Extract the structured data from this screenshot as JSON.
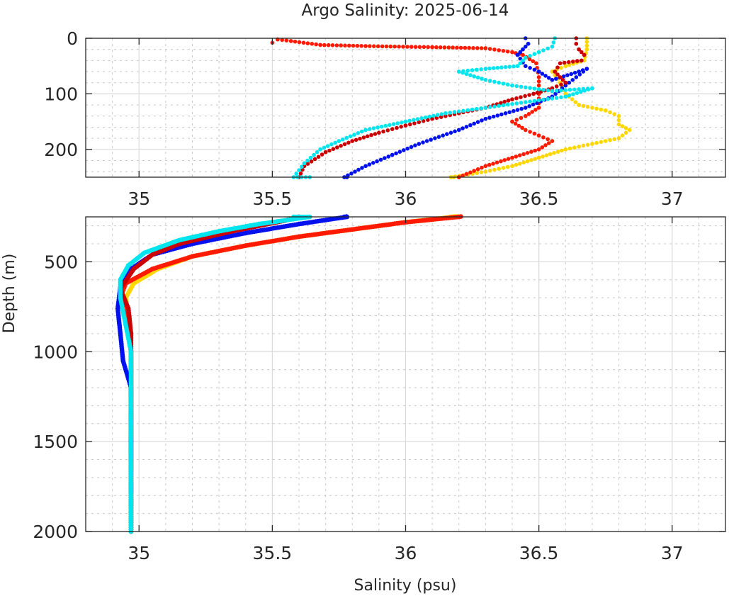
{
  "chart_data": {
    "type": "scatter",
    "title": "Argo Salinity: 2025-06-14",
    "xlabel": "Salinity (psu)",
    "ylabel": "Depth (m)",
    "grid": true,
    "minor_grid": true,
    "legend": "none",
    "panels": [
      {
        "name": "upper",
        "xlim": [
          34.8,
          37.2
        ],
        "ylim": [
          0,
          250
        ],
        "y_reversed": true,
        "xticks": [
          35,
          35.5,
          36,
          36.5,
          37
        ],
        "xtick_labels": [
          "35",
          "35.5",
          "36",
          "36.5",
          "37"
        ],
        "yticks": [
          0,
          100,
          200
        ],
        "ytick_labels": [
          "0",
          "100",
          "200"
        ]
      },
      {
        "name": "lower",
        "xlim": [
          34.8,
          37.2
        ],
        "ylim": [
          250,
          2000
        ],
        "y_reversed": true,
        "xticks": [
          35,
          35.5,
          36,
          36.5,
          37
        ],
        "xtick_labels": [
          "35",
          "35.5",
          "36",
          "36.5",
          "37"
        ],
        "yticks": [
          500,
          1000,
          1500,
          2000
        ],
        "ytick_labels": [
          "500",
          "1000",
          "1500",
          "2000"
        ]
      }
    ],
    "series": [
      {
        "name": "profile-darkred",
        "color": "#cc0000",
        "points": [
          [
            36.64,
            0
          ],
          [
            36.64,
            10
          ],
          [
            36.65,
            20
          ],
          [
            36.67,
            30
          ],
          [
            36.66,
            40
          ],
          [
            36.58,
            45
          ],
          [
            36.56,
            60
          ],
          [
            36.6,
            80
          ],
          [
            36.55,
            90
          ],
          [
            36.48,
            100
          ],
          [
            36.4,
            110
          ],
          [
            36.3,
            125
          ],
          [
            36.2,
            135
          ],
          [
            36.1,
            145
          ],
          [
            36.0,
            157
          ],
          [
            35.9,
            170
          ],
          [
            35.8,
            185
          ],
          [
            35.7,
            205
          ],
          [
            35.62,
            230
          ],
          [
            35.6,
            250
          ],
          [
            35.55,
            270
          ],
          [
            35.45,
            300
          ],
          [
            35.35,
            330
          ],
          [
            35.25,
            365
          ],
          [
            35.15,
            400
          ],
          [
            35.05,
            460
          ],
          [
            34.98,
            540
          ],
          [
            34.93,
            650
          ],
          [
            34.96,
            760
          ],
          [
            34.97,
            900
          ],
          [
            34.97,
            1100
          ],
          [
            34.97,
            1300
          ],
          [
            34.97,
            1600
          ],
          [
            34.97,
            2000
          ]
        ]
      },
      {
        "name": "profile-red",
        "color": "#ff1a00",
        "points": [
          [
            35.5,
            8
          ],
          [
            35.52,
            2
          ],
          [
            35.57,
            5
          ],
          [
            35.68,
            12
          ],
          [
            35.85,
            14
          ],
          [
            36.1,
            16
          ],
          [
            36.3,
            18
          ],
          [
            36.4,
            25
          ],
          [
            36.44,
            30
          ],
          [
            36.49,
            45
          ],
          [
            36.5,
            70
          ],
          [
            36.5,
            100
          ],
          [
            36.5,
            125
          ],
          [
            36.45,
            140
          ],
          [
            36.4,
            150
          ],
          [
            36.45,
            165
          ],
          [
            36.5,
            175
          ],
          [
            36.55,
            185
          ],
          [
            36.5,
            200
          ],
          [
            36.4,
            215
          ],
          [
            36.3,
            230
          ],
          [
            36.2,
            250
          ],
          [
            36.2,
            250
          ],
          [
            36.0,
            280
          ],
          [
            35.8,
            320
          ],
          [
            35.6,
            360
          ],
          [
            35.4,
            410
          ],
          [
            35.2,
            470
          ],
          [
            35.05,
            540
          ],
          [
            34.95,
            620
          ],
          [
            34.93,
            700
          ],
          [
            34.95,
            800
          ],
          [
            34.97,
            1000
          ],
          [
            34.97,
            1400
          ],
          [
            34.97,
            2000
          ]
        ]
      },
      {
        "name": "profile-yellow",
        "color": "#ffd700",
        "points": [
          [
            36.68,
            0
          ],
          [
            36.68,
            20
          ],
          [
            36.67,
            40
          ],
          [
            36.6,
            50
          ],
          [
            36.55,
            60
          ],
          [
            36.58,
            80
          ],
          [
            36.6,
            100
          ],
          [
            36.65,
            120
          ],
          [
            36.75,
            130
          ],
          [
            36.8,
            140
          ],
          [
            36.8,
            155
          ],
          [
            36.84,
            165
          ],
          [
            36.8,
            180
          ],
          [
            36.7,
            190
          ],
          [
            36.6,
            200
          ],
          [
            36.5,
            215
          ],
          [
            36.4,
            230
          ],
          [
            36.3,
            240
          ],
          [
            36.17,
            250
          ],
          [
            36.18,
            250
          ],
          [
            36.0,
            280
          ],
          [
            35.8,
            320
          ],
          [
            35.6,
            360
          ],
          [
            35.4,
            410
          ],
          [
            35.2,
            470
          ],
          [
            35.07,
            540
          ],
          [
            34.98,
            620
          ],
          [
            34.95,
            700
          ],
          [
            34.96,
            800
          ],
          [
            34.97,
            1000
          ],
          [
            34.97,
            1400
          ],
          [
            34.97,
            2000
          ]
        ]
      },
      {
        "name": "profile-blue",
        "color": "#0011ee",
        "points": [
          [
            36.45,
            0
          ],
          [
            36.46,
            10
          ],
          [
            36.44,
            20
          ],
          [
            36.42,
            30
          ],
          [
            36.45,
            50
          ],
          [
            36.5,
            60
          ],
          [
            36.55,
            75
          ],
          [
            36.65,
            60
          ],
          [
            36.68,
            55
          ],
          [
            36.6,
            85
          ],
          [
            36.55,
            105
          ],
          [
            36.45,
            125
          ],
          [
            36.3,
            145
          ],
          [
            36.2,
            165
          ],
          [
            36.05,
            190
          ],
          [
            35.95,
            210
          ],
          [
            35.85,
            230
          ],
          [
            35.77,
            250
          ],
          [
            35.78,
            250
          ],
          [
            35.6,
            290
          ],
          [
            35.4,
            340
          ],
          [
            35.2,
            400
          ],
          [
            35.05,
            460
          ],
          [
            34.97,
            540
          ],
          [
            34.93,
            640
          ],
          [
            34.92,
            760
          ],
          [
            34.93,
            900
          ],
          [
            34.94,
            1050
          ],
          [
            34.97,
            1200
          ],
          [
            34.97,
            1500
          ],
          [
            34.97,
            2000
          ]
        ]
      },
      {
        "name": "profile-cyan",
        "color": "#00e5ee",
        "points": [
          [
            36.56,
            0
          ],
          [
            36.55,
            15
          ],
          [
            36.5,
            25
          ],
          [
            36.45,
            35
          ],
          [
            36.42,
            50
          ],
          [
            36.3,
            55
          ],
          [
            36.2,
            60
          ],
          [
            36.3,
            75
          ],
          [
            36.4,
            85
          ],
          [
            36.55,
            95
          ],
          [
            36.7,
            90
          ],
          [
            36.6,
            105
          ],
          [
            36.45,
            115
          ],
          [
            36.3,
            125
          ],
          [
            36.15,
            135
          ],
          [
            36.0,
            150
          ],
          [
            35.85,
            165
          ],
          [
            35.75,
            185
          ],
          [
            35.68,
            200
          ],
          [
            35.62,
            225
          ],
          [
            35.58,
            250
          ],
          [
            35.64,
            250
          ],
          [
            35.45,
            290
          ],
          [
            35.3,
            330
          ],
          [
            35.15,
            380
          ],
          [
            35.02,
            450
          ],
          [
            34.96,
            520
          ],
          [
            34.93,
            600
          ],
          [
            34.93,
            700
          ],
          [
            34.95,
            850
          ],
          [
            34.97,
            1000
          ],
          [
            34.97,
            1400
          ],
          [
            34.97,
            2000
          ]
        ]
      }
    ]
  }
}
